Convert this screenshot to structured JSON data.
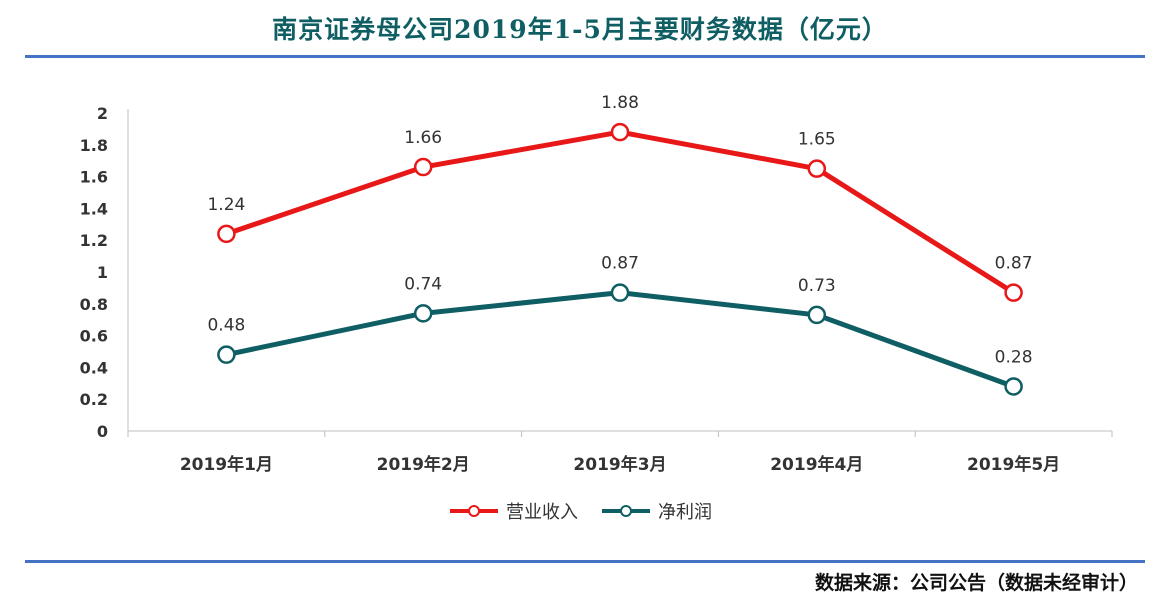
{
  "title": "南京证券母公司2019年1-5月主要财务数据（亿元）",
  "source": "数据来源：公司公告（数据未经审计）",
  "colors": {
    "revenue": "#e81818",
    "profit": "#0e5e63",
    "rule": "#4472c4"
  },
  "chart_data": {
    "type": "line",
    "categories": [
      "2019年1月",
      "2019年2月",
      "2019年3月",
      "2019年4月",
      "2019年5月"
    ],
    "series": [
      {
        "name": "营业收入",
        "values": [
          1.24,
          1.66,
          1.88,
          1.65,
          0.87
        ],
        "labels": [
          "1.24",
          "1.66",
          "1.88",
          "1.65",
          "0.87"
        ]
      },
      {
        "name": "净利润",
        "values": [
          0.48,
          0.74,
          0.87,
          0.73,
          0.28
        ],
        "labels": [
          "0.48",
          "0.74",
          "0.87",
          "0.73",
          "0.28"
        ]
      }
    ],
    "yticks": [
      "0",
      "0.2",
      "0.4",
      "0.6",
      "0.8",
      "1",
      "1.2",
      "1.4",
      "1.6",
      "1.8",
      "2"
    ],
    "ylim": [
      0,
      2
    ],
    "grid": false,
    "legend_position": "bottom"
  }
}
